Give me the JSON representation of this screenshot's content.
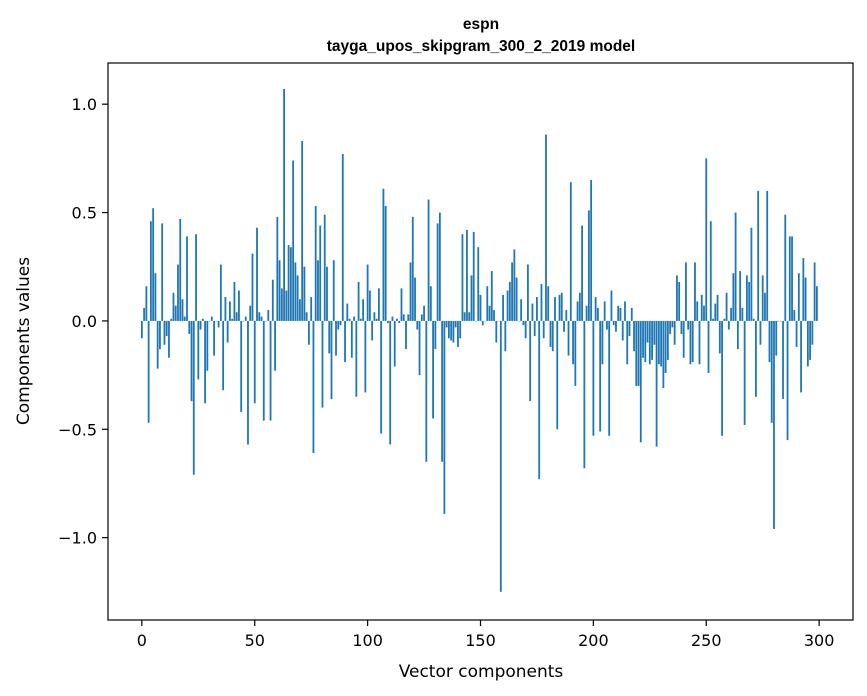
{
  "chart_data": {
    "type": "bar",
    "title": "espn",
    "subtitle": "tayga_upos_skipgram_300_2_2019 model",
    "xlabel": "Vector components",
    "ylabel": "Components values",
    "xlim": [
      -15,
      315
    ],
    "ylim": [
      -1.38,
      1.19
    ],
    "xticks": [
      0,
      50,
      100,
      150,
      200,
      250,
      300
    ],
    "xtick_labels": [
      "0",
      "50",
      "100",
      "150",
      "200",
      "250",
      "300"
    ],
    "yticks": [
      -1.0,
      -0.5,
      0.0,
      0.5,
      1.0
    ],
    "ytick_labels": [
      "−1.0",
      "−0.5",
      "0.0",
      "0.5",
      "1.0"
    ],
    "bar_color": "#1f77b4",
    "x": "0..299 (component index)",
    "values": [
      -0.08,
      0.06,
      0.16,
      -0.47,
      0.46,
      0.52,
      0.22,
      -0.22,
      -0.13,
      0.45,
      -0.11,
      -0.07,
      -0.17,
      0.01,
      0.13,
      0.07,
      0.26,
      0.47,
      0.1,
      0.02,
      0.39,
      -0.06,
      -0.37,
      -0.71,
      0.4,
      -0.27,
      -0.04,
      0.01,
      -0.38,
      -0.23,
      0.0,
      0.02,
      -0.16,
      0.0,
      -0.03,
      0.26,
      -0.32,
      0.11,
      -0.1,
      0.09,
      0.01,
      0.18,
      0.04,
      0.14,
      -0.42,
      0.0,
      0.02,
      -0.57,
      0.07,
      0.31,
      -0.38,
      0.43,
      0.04,
      0.02,
      -0.46,
      0.0,
      0.05,
      -0.46,
      0.19,
      -0.23,
      0.48,
      0.28,
      0.15,
      1.07,
      0.14,
      0.35,
      0.34,
      0.74,
      0.27,
      0.21,
      0.1,
      0.83,
      0.25,
      0.04,
      -0.11,
      0.11,
      -0.61,
      0.53,
      0.28,
      0.44,
      -0.4,
      0.49,
      0.25,
      -0.15,
      -0.36,
      0.28,
      -0.16,
      -0.04,
      -0.02,
      0.77,
      -0.19,
      0.08,
      0.01,
      -0.17,
      0.02,
      -0.35,
      0.18,
      0.01,
      0.1,
      -0.33,
      0.26,
      0.14,
      -0.09,
      0.04,
      0.01,
      0.15,
      -0.52,
      0.61,
      0.53,
      -0.01,
      -0.57,
      0.02,
      -0.21,
      0.01,
      -0.01,
      0.15,
      0.03,
      -0.13,
      0.03,
      0.27,
      0.48,
      0.2,
      -0.04,
      -0.25,
      0.03,
      0.07,
      -0.65,
      0.56,
      0.16,
      -0.45,
      -0.13,
      0.45,
      0.5,
      -0.65,
      -0.89,
      -0.03,
      -0.08,
      -0.09,
      -0.1,
      -0.03,
      -0.12,
      -0.08,
      0.4,
      0.04,
      0.42,
      0.04,
      0.21,
      0.41,
      0.0,
      0.34,
      0.12,
      -0.02,
      0.0,
      0.16,
      0.07,
      0.23,
      0.05,
      -0.1,
      0.0,
      -1.25,
      0.12,
      -0.14,
      0.14,
      0.18,
      0.27,
      0.33,
      0.2,
      0.0,
      0.1,
      -0.02,
      -0.08,
      0.26,
      -0.37,
      0.08,
      -0.07,
      0.11,
      -0.73,
      0.17,
      -0.08,
      0.86,
      0.16,
      -0.12,
      -0.14,
      0.11,
      -0.5,
      0.12,
      0.13,
      -0.05,
      0.05,
      -0.16,
      0.64,
      -0.2,
      -0.3,
      0.09,
      0.13,
      0.44,
      -0.68,
      0.07,
      0.51,
      0.65,
      -0.53,
      0.11,
      0.06,
      -0.51,
      -0.2,
      0.09,
      -0.04,
      -0.53,
      0.14,
      -0.02,
      -0.05,
      0.07,
      0.06,
      -0.09,
      0.09,
      -0.2,
      -0.07,
      0.06,
      -0.14,
      -0.3,
      -0.3,
      -0.56,
      -0.17,
      -0.19,
      -0.1,
      -0.2,
      -0.18,
      -0.11,
      -0.58,
      -0.2,
      -0.21,
      -0.31,
      -0.24,
      -0.18,
      -0.06,
      -0.03,
      -0.11,
      0.21,
      0.18,
      -0.06,
      -0.17,
      0.27,
      -0.04,
      -0.2,
      -0.19,
      0.27,
      0.09,
      -0.2,
      0.12,
      0.07,
      0.75,
      -0.24,
      0.46,
      0.01,
      0.08,
      0.12,
      -0.15,
      -0.53,
      0.01,
      0.13,
      -0.04,
      0.06,
      0.22,
      0.5,
      -0.13,
      0.23,
      0.06,
      -0.48,
      0.21,
      0.18,
      0.43,
      0.01,
      -0.35,
      0.6,
      -0.11,
      0.21,
      0.13,
      0.6,
      -0.19,
      -0.47,
      -0.96,
      -0.16,
      0.0,
      0.0,
      -0.36,
      0.49,
      -0.55,
      0.39,
      0.39,
      0.05,
      -0.12,
      0.22,
      -0.33,
      0.29,
      0.2,
      -0.21,
      -0.18,
      -0.11,
      0.27,
      0.16
    ]
  }
}
